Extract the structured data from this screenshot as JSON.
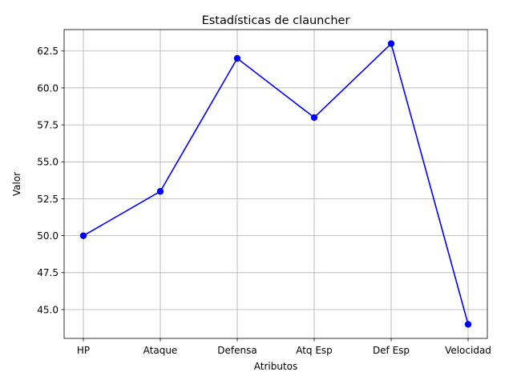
{
  "chart_data": {
    "type": "line",
    "title": "Estadísticas de clauncher",
    "xlabel": "Atributos",
    "ylabel": "Valor",
    "categories": [
      "HP",
      "Ataque",
      "Defensa",
      "Atq Esp",
      "Def Esp",
      "Velocidad"
    ],
    "series": [
      {
        "values": [
          50,
          53,
          62,
          58,
          63,
          44
        ]
      }
    ],
    "ylim": [
      43.05,
      63.95
    ],
    "yticks": [
      "45.0",
      "47.5",
      "50.0",
      "52.5",
      "55.0",
      "57.5",
      "60.0",
      "62.5"
    ],
    "grid": true,
    "line_color": "#0000ff"
  }
}
